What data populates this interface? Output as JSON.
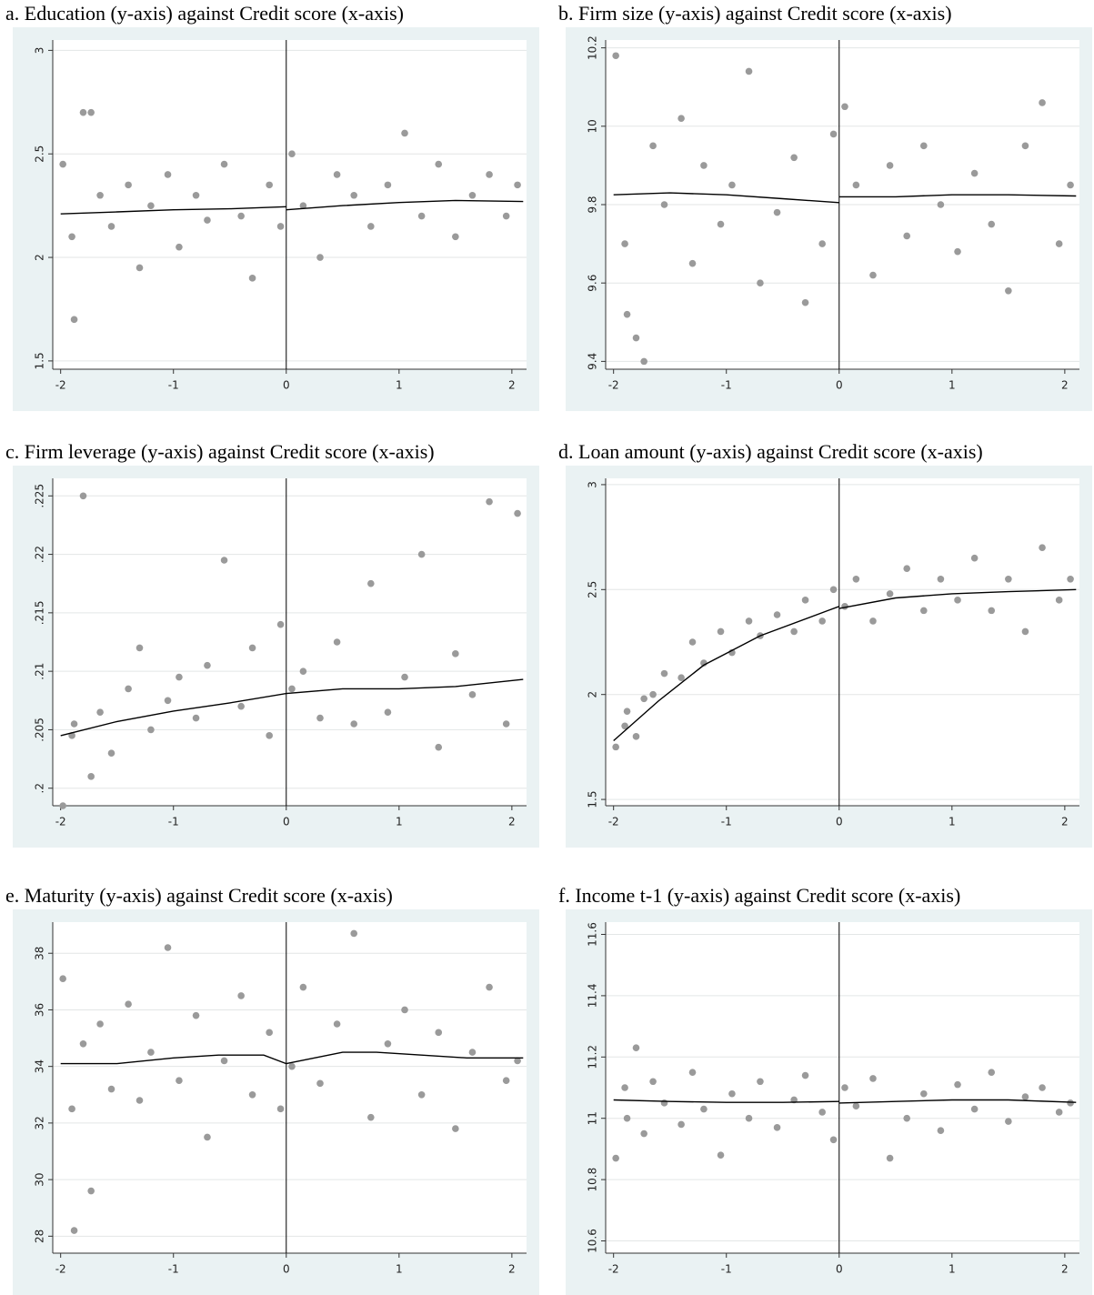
{
  "chart_data": [
    {
      "type": "scatter",
      "title": "a. Education (y-axis) against Credit score (x-axis)",
      "xlim": [
        -2.07,
        2.13
      ],
      "xticks": [
        -2,
        -1,
        0,
        1,
        2
      ],
      "ylim": [
        1.46,
        3.05
      ],
      "yticks": [
        1.5,
        2,
        2.5,
        3
      ],
      "grid": true,
      "cutoff": 0,
      "series": [
        {
          "type": "scatter",
          "color": "#9a9a9a",
          "x": [
            -1.98,
            -1.9,
            -1.88,
            -1.8,
            -1.73,
            -1.65,
            -1.55,
            -1.4,
            -1.3,
            -1.2,
            -1.05,
            -0.95,
            -0.8,
            -0.7,
            -0.55,
            -0.4,
            -0.3,
            -0.15,
            -0.05,
            0.05,
            0.15,
            0.3,
            0.45,
            0.6,
            0.75,
            0.9,
            1.05,
            1.2,
            1.35,
            1.5,
            1.65,
            1.8,
            1.95,
            2.05
          ],
          "y": [
            2.45,
            2.1,
            1.7,
            2.7,
            2.7,
            2.3,
            2.15,
            2.35,
            1.95,
            2.25,
            2.4,
            2.05,
            2.3,
            2.18,
            2.45,
            2.2,
            1.9,
            2.35,
            2.15,
            2.5,
            2.25,
            2.0,
            2.4,
            2.3,
            2.15,
            2.35,
            2.6,
            2.2,
            2.45,
            2.1,
            2.3,
            2.4,
            2.2,
            2.35
          ]
        },
        {
          "type": "line",
          "color": "#000000",
          "x": [
            -2,
            -1.5,
            -1,
            -0.5,
            0
          ],
          "y": [
            2.21,
            2.22,
            2.23,
            2.235,
            2.245
          ]
        },
        {
          "type": "line",
          "color": "#000000",
          "x": [
            0,
            0.5,
            1,
            1.5,
            2.1
          ],
          "y": [
            2.23,
            2.25,
            2.265,
            2.275,
            2.27
          ]
        }
      ]
    },
    {
      "type": "scatter",
      "title": "b. Firm size (y-axis) against Credit score (x-axis)",
      "xlim": [
        -2.07,
        2.13
      ],
      "xticks": [
        -2,
        -1,
        0,
        1,
        2
      ],
      "ylim": [
        9.38,
        10.22
      ],
      "yticks": [
        9.4,
        9.6,
        9.8,
        10,
        10.2
      ],
      "grid": true,
      "cutoff": 0,
      "series": [
        {
          "type": "scatter",
          "color": "#9a9a9a",
          "x": [
            -1.98,
            -1.9,
            -1.88,
            -1.8,
            -1.73,
            -1.65,
            -1.55,
            -1.4,
            -1.3,
            -1.2,
            -1.05,
            -0.95,
            -0.8,
            -0.7,
            -0.55,
            -0.4,
            -0.3,
            -0.15,
            -0.05,
            0.05,
            0.15,
            0.3,
            0.45,
            0.6,
            0.75,
            0.9,
            1.05,
            1.2,
            1.35,
            1.5,
            1.65,
            1.8,
            1.95,
            2.05
          ],
          "y": [
            10.18,
            9.7,
            9.52,
            9.46,
            9.4,
            9.95,
            9.8,
            10.02,
            9.65,
            9.9,
            9.75,
            9.85,
            10.14,
            9.6,
            9.78,
            9.92,
            9.55,
            9.7,
            9.98,
            10.05,
            9.85,
            9.62,
            9.9,
            9.72,
            9.95,
            9.8,
            9.68,
            9.88,
            9.75,
            9.58,
            9.95,
            10.06,
            9.7,
            9.85
          ]
        },
        {
          "type": "line",
          "color": "#000000",
          "x": [
            -2,
            -1.5,
            -1,
            -0.5,
            0
          ],
          "y": [
            9.825,
            9.83,
            9.825,
            9.815,
            9.805
          ]
        },
        {
          "type": "line",
          "color": "#000000",
          "x": [
            0,
            0.5,
            1,
            1.5,
            2.1
          ],
          "y": [
            9.82,
            9.82,
            9.825,
            9.825,
            9.822
          ]
        }
      ]
    },
    {
      "type": "scatter",
      "title": "c. Firm leverage (y-axis) against Credit score (x-axis)",
      "xlim": [
        -2.07,
        2.13
      ],
      "xticks": [
        -2,
        -1,
        0,
        1,
        2
      ],
      "ylim": [
        0.1985,
        0.2265
      ],
      "yticks": [
        {
          "value": 0.2,
          "label": ".2"
        },
        {
          "value": 0.205,
          "label": ".205"
        },
        {
          "value": 0.21,
          "label": ".21"
        },
        {
          "value": 0.215,
          "label": ".215"
        },
        {
          "value": 0.22,
          "label": ".22"
        },
        {
          "value": 0.225,
          "label": ".225"
        }
      ],
      "grid": true,
      "cutoff": 0,
      "series": [
        {
          "type": "scatter",
          "color": "#9a9a9a",
          "x": [
            -1.98,
            -1.9,
            -1.88,
            -1.8,
            -1.73,
            -1.65,
            -1.55,
            -1.4,
            -1.3,
            -1.2,
            -1.05,
            -0.95,
            -0.8,
            -0.7,
            -0.55,
            -0.4,
            -0.3,
            -0.15,
            -0.05,
            0.05,
            0.15,
            0.3,
            0.45,
            0.6,
            0.75,
            0.9,
            1.05,
            1.2,
            1.35,
            1.5,
            1.65,
            1.8,
            1.95,
            2.05
          ],
          "y": [
            0.1985,
            0.2045,
            0.2055,
            0.225,
            0.201,
            0.2065,
            0.203,
            0.2085,
            0.212,
            0.205,
            0.2075,
            0.2095,
            0.206,
            0.2105,
            0.2195,
            0.207,
            0.212,
            0.2045,
            0.214,
            0.2085,
            0.21,
            0.206,
            0.2125,
            0.2055,
            0.2175,
            0.2065,
            0.2095,
            0.22,
            0.2035,
            0.2115,
            0.208,
            0.2245,
            0.2055,
            0.2235
          ]
        },
        {
          "type": "line",
          "color": "#000000",
          "x": [
            -2,
            -1.5,
            -1,
            -0.5,
            0
          ],
          "y": [
            0.2045,
            0.2057,
            0.2066,
            0.2073,
            0.2081
          ]
        },
        {
          "type": "line",
          "color": "#000000",
          "x": [
            0,
            0.5,
            1,
            1.5,
            2.1
          ],
          "y": [
            0.2081,
            0.2085,
            0.2085,
            0.2087,
            0.2093
          ]
        }
      ]
    },
    {
      "type": "scatter",
      "title": "d. Loan amount (y-axis) against Credit score (x-axis)",
      "xlim": [
        -2.07,
        2.13
      ],
      "xticks": [
        -2,
        -1,
        0,
        1,
        2
      ],
      "ylim": [
        1.47,
        3.03
      ],
      "yticks": [
        1.5,
        2,
        2.5,
        3
      ],
      "grid": true,
      "cutoff": 0,
      "series": [
        {
          "type": "scatter",
          "color": "#9a9a9a",
          "x": [
            -1.98,
            -1.9,
            -1.88,
            -1.8,
            -1.73,
            -1.65,
            -1.55,
            -1.4,
            -1.3,
            -1.2,
            -1.05,
            -0.95,
            -0.8,
            -0.7,
            -0.55,
            -0.4,
            -0.3,
            -0.15,
            -0.05,
            0.05,
            0.15,
            0.3,
            0.45,
            0.6,
            0.75,
            0.9,
            1.05,
            1.2,
            1.35,
            1.5,
            1.65,
            1.8,
            1.95,
            2.05
          ],
          "y": [
            1.75,
            1.85,
            1.92,
            1.8,
            1.98,
            2.0,
            2.1,
            2.08,
            2.25,
            2.15,
            2.3,
            2.2,
            2.35,
            2.28,
            2.38,
            2.3,
            2.45,
            2.35,
            2.5,
            2.42,
            2.55,
            2.35,
            2.48,
            2.6,
            2.4,
            2.55,
            2.45,
            2.65,
            2.4,
            2.55,
            2.3,
            2.7,
            2.45,
            2.55
          ]
        },
        {
          "type": "line",
          "color": "#000000",
          "x": [
            -2,
            -1.6,
            -1.2,
            -0.7,
            -0.1,
            0
          ],
          "y": [
            1.78,
            1.97,
            2.14,
            2.28,
            2.4,
            2.42
          ]
        },
        {
          "type": "line",
          "color": "#000000",
          "x": [
            0,
            0.5,
            1,
            1.5,
            2.1
          ],
          "y": [
            2.41,
            2.46,
            2.48,
            2.49,
            2.5
          ]
        }
      ]
    },
    {
      "type": "scatter",
      "title": "e. Maturity (y-axis) against Credit score (x-axis)",
      "xlim": [
        -2.07,
        2.13
      ],
      "xticks": [
        -2,
        -1,
        0,
        1,
        2
      ],
      "ylim": [
        27.4,
        39.1
      ],
      "yticks": [
        28,
        30,
        32,
        34,
        36,
        38
      ],
      "grid": true,
      "cutoff": 0,
      "series": [
        {
          "type": "scatter",
          "color": "#9a9a9a",
          "x": [
            -1.98,
            -1.9,
            -1.88,
            -1.8,
            -1.73,
            -1.65,
            -1.55,
            -1.4,
            -1.3,
            -1.2,
            -1.05,
            -0.95,
            -0.8,
            -0.7,
            -0.55,
            -0.4,
            -0.3,
            -0.15,
            -0.05,
            0.05,
            0.15,
            0.3,
            0.45,
            0.6,
            0.75,
            0.9,
            1.05,
            1.2,
            1.35,
            1.5,
            1.65,
            1.8,
            1.95,
            2.05
          ],
          "y": [
            37.1,
            32.5,
            28.2,
            34.8,
            29.6,
            35.5,
            33.2,
            36.2,
            32.8,
            34.5,
            38.2,
            33.5,
            35.8,
            31.5,
            34.2,
            36.5,
            33.0,
            35.2,
            32.5,
            34.0,
            36.8,
            33.4,
            35.5,
            38.7,
            32.2,
            34.8,
            36.0,
            33.0,
            35.2,
            31.8,
            34.5,
            36.8,
            33.5,
            34.2
          ]
        },
        {
          "type": "line",
          "color": "#000000",
          "x": [
            -2,
            -1.5,
            -1,
            -0.6,
            -0.2,
            0
          ],
          "y": [
            34.1,
            34.1,
            34.3,
            34.4,
            34.4,
            34.1
          ]
        },
        {
          "type": "line",
          "color": "#000000",
          "x": [
            0,
            0.5,
            0.8,
            1.2,
            1.6,
            2.1
          ],
          "y": [
            34.1,
            34.5,
            34.5,
            34.4,
            34.3,
            34.3
          ]
        }
      ]
    },
    {
      "type": "scatter",
      "title": "f. Income t-1 (y-axis) against Credit score (x-axis)",
      "xlim": [
        -2.07,
        2.13
      ],
      "xticks": [
        -2,
        -1,
        0,
        1,
        2
      ],
      "ylim": [
        10.56,
        11.64
      ],
      "yticks": [
        10.6,
        10.8,
        11,
        11.2,
        11.4,
        11.6
      ],
      "grid": true,
      "cutoff": 0,
      "series": [
        {
          "type": "scatter",
          "color": "#9a9a9a",
          "x": [
            -1.98,
            -1.9,
            -1.88,
            -1.8,
            -1.73,
            -1.65,
            -1.55,
            -1.4,
            -1.3,
            -1.2,
            -1.05,
            -0.95,
            -0.8,
            -0.7,
            -0.55,
            -0.4,
            -0.3,
            -0.15,
            -0.05,
            0.05,
            0.15,
            0.3,
            0.45,
            0.6,
            0.75,
            0.9,
            1.05,
            1.2,
            1.35,
            1.5,
            1.65,
            1.8,
            1.95,
            2.05
          ],
          "y": [
            10.87,
            11.1,
            11.0,
            11.23,
            10.95,
            11.12,
            11.05,
            10.98,
            11.15,
            11.03,
            10.88,
            11.08,
            11.0,
            11.12,
            10.97,
            11.06,
            11.14,
            11.02,
            10.93,
            11.1,
            11.04,
            11.13,
            10.87,
            11.0,
            11.08,
            10.96,
            11.11,
            11.03,
            11.15,
            10.99,
            11.07,
            11.1,
            11.02,
            11.05
          ]
        },
        {
          "type": "line",
          "color": "#000000",
          "x": [
            -2,
            -1.5,
            -1,
            -0.5,
            0
          ],
          "y": [
            11.06,
            11.055,
            11.052,
            11.052,
            11.055
          ]
        },
        {
          "type": "line",
          "color": "#000000",
          "x": [
            0,
            0.5,
            1,
            1.5,
            2.1
          ],
          "y": [
            11.05,
            11.055,
            11.06,
            11.06,
            11.052
          ]
        }
      ]
    }
  ]
}
